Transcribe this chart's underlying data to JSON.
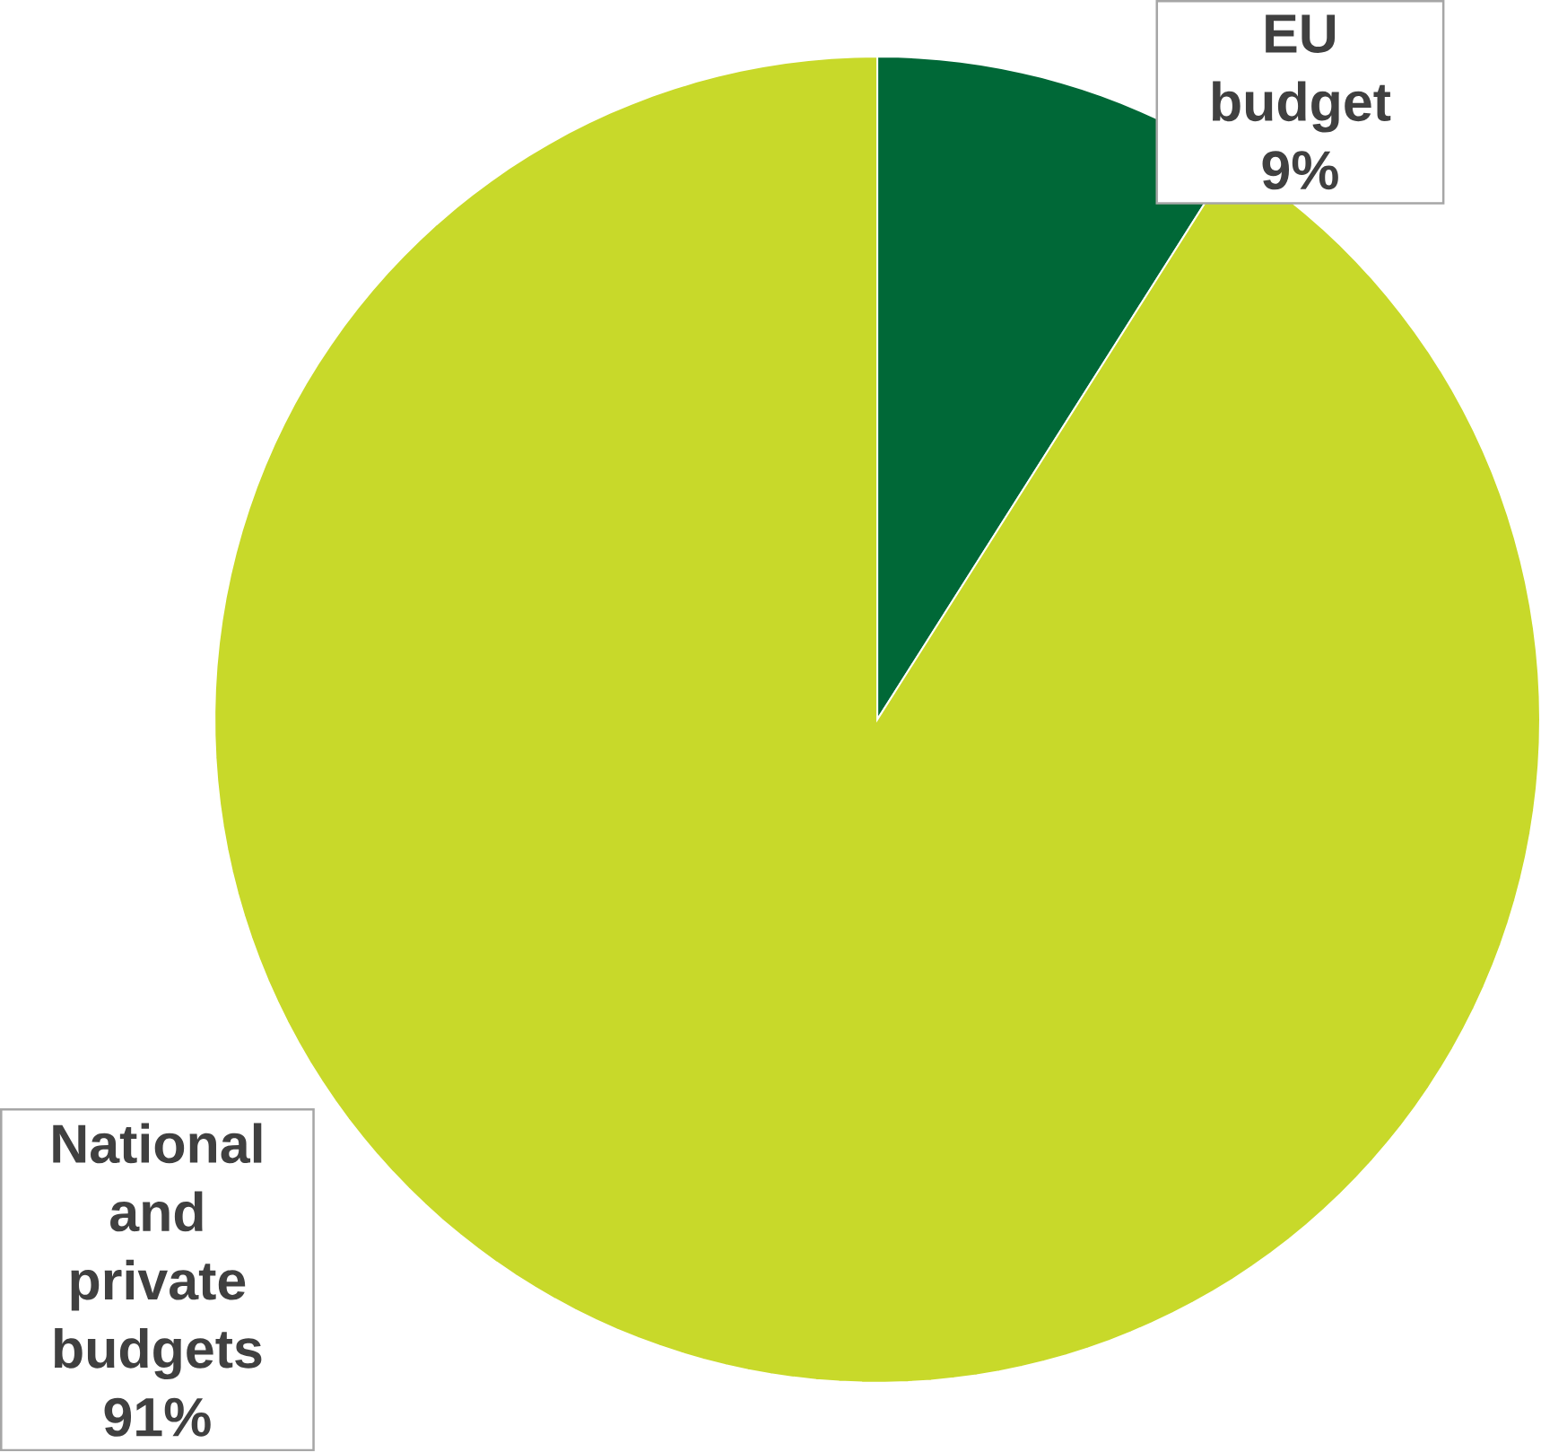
{
  "chart_data": {
    "type": "pie",
    "categories": [
      "EU budget",
      "National and private budgets"
    ],
    "values": [
      9,
      91
    ],
    "value_labels": [
      "9%",
      "91%"
    ],
    "colors": [
      "#006837",
      "#c8d92a"
    ]
  }
}
